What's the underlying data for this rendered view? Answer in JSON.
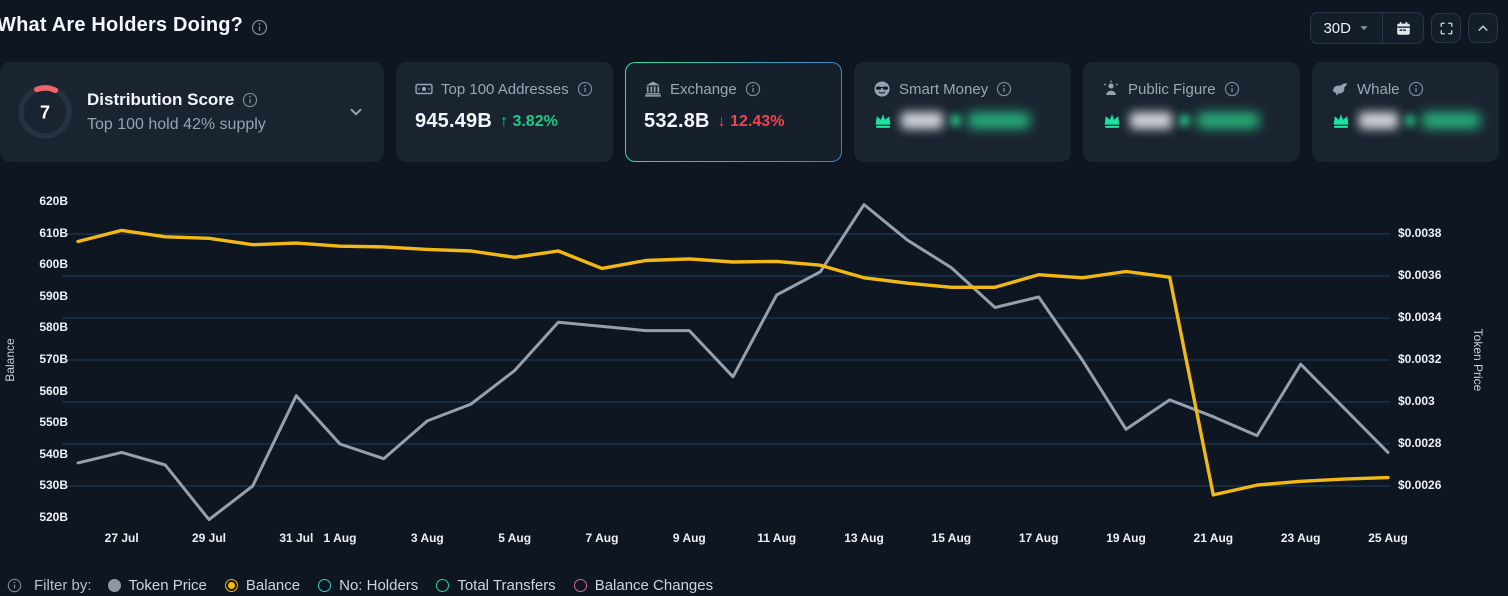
{
  "header": {
    "title": "What Are Holders Doing?",
    "timeframe": "30D"
  },
  "cards": {
    "distribution_score": {
      "score": "7",
      "title": "Distribution Score",
      "subtitle": "Top 100 hold 42% supply",
      "arc_color": "#f0646b"
    },
    "stats": [
      {
        "title": "Top 100 Addresses",
        "icon": "banknote-icon",
        "value": "945.49B",
        "change": "3.82%",
        "direction": "up",
        "selected": false,
        "masked": false
      },
      {
        "title": "Exchange",
        "icon": "bank-icon",
        "value": "532.8B",
        "change": "12.43%",
        "direction": "down",
        "selected": true,
        "masked": false
      },
      {
        "title": "Smart Money",
        "icon": "smart-money-icon",
        "masked": true
      },
      {
        "title": "Public Figure",
        "icon": "public-figure-icon",
        "masked": true
      },
      {
        "title": "Whale",
        "icon": "whale-icon",
        "masked": true
      }
    ]
  },
  "chart_data": {
    "type": "line",
    "grid": "horizontal",
    "days": [
      "26 Jul",
      "27 Jul",
      "28 Jul",
      "29 Jul",
      "30 Jul",
      "31 Jul",
      "1 Aug",
      "2 Aug",
      "3 Aug",
      "4 Aug",
      "5 Aug",
      "6 Aug",
      "7 Aug",
      "8 Aug",
      "9 Aug",
      "10 Aug",
      "11 Aug",
      "12 Aug",
      "13 Aug",
      "14 Aug",
      "15 Aug",
      "16 Aug",
      "17 Aug",
      "18 Aug",
      "19 Aug",
      "20 Aug",
      "21 Aug",
      "22 Aug",
      "23 Aug",
      "24 Aug",
      "25 Aug"
    ],
    "x_ticks": [
      {
        "label": "27 Jul",
        "day": 1
      },
      {
        "label": "29 Jul",
        "day": 3
      },
      {
        "label": "31 Jul",
        "day": 5
      },
      {
        "label": "1 Aug",
        "day": 6
      },
      {
        "label": "3 Aug",
        "day": 8
      },
      {
        "label": "5 Aug",
        "day": 10
      },
      {
        "label": "7 Aug",
        "day": 12
      },
      {
        "label": "9 Aug",
        "day": 14
      },
      {
        "label": "11 Aug",
        "day": 16
      },
      {
        "label": "13 Aug",
        "day": 18
      },
      {
        "label": "15 Aug",
        "day": 20
      },
      {
        "label": "17 Aug",
        "day": 22
      },
      {
        "label": "19 Aug",
        "day": 24
      },
      {
        "label": "21 Aug",
        "day": 26
      },
      {
        "label": "23 Aug",
        "day": 28
      },
      {
        "label": "25 Aug",
        "day": 30
      }
    ],
    "left_axis": {
      "label": "Balance",
      "max": 620,
      "min": 520,
      "ticks": [
        "620B",
        "610B",
        "600B",
        "590B",
        "580B",
        "570B",
        "560B",
        "550B",
        "540B",
        "530B",
        "520B"
      ]
    },
    "right_axis": {
      "label": "Token Price",
      "max": 0.0038,
      "min": 0.0026,
      "ticks": [
        "$0.0038",
        "$0.0036",
        "$0.0034",
        "$0.0032",
        "$0.003",
        "$0.0028",
        "$0.0026"
      ]
    },
    "series": [
      {
        "name": "Balance",
        "axis": "left",
        "color": "#f2b816",
        "values": [
          607.5,
          611,
          609,
          608.5,
          606.5,
          607,
          606,
          605.8,
          605,
          604.5,
          602.5,
          604.5,
          599,
          601.5,
          602,
          601,
          601.2,
          600,
          596,
          594.3,
          593,
          593,
          597,
          596,
          598,
          596.2,
          527.3,
          530.4,
          531.6,
          532.3,
          532.8
        ]
      },
      {
        "name": "Token Price",
        "axis": "right",
        "color": "#94a0ad",
        "values": [
          0.00271,
          0.00276,
          0.0027,
          0.00244,
          0.0026,
          0.00303,
          0.0028,
          0.00273,
          0.00291,
          0.00299,
          0.00315,
          0.00338,
          0.00336,
          0.00334,
          0.00334,
          0.00312,
          0.00351,
          0.00362,
          0.00394,
          0.00377,
          0.00364,
          0.00345,
          0.0035,
          0.0032,
          0.00287,
          0.00301,
          0.00293,
          0.00284,
          0.00318,
          0.00297,
          0.00276
        ]
      }
    ]
  },
  "filter": {
    "label": "Filter by:",
    "options": [
      {
        "label": "Token Price",
        "color": "#8b97a3",
        "style": "filled",
        "selected": false
      },
      {
        "label": "Balance",
        "color": "#f0b90b",
        "style": "radio",
        "selected": true
      },
      {
        "label": "No: Holders",
        "color": "#2fd6c3",
        "style": "ring",
        "selected": false
      },
      {
        "label": "Total Transfers",
        "color": "#27d99e",
        "style": "ring",
        "selected": false
      },
      {
        "label": "Balance Changes",
        "color": "#e05fa9",
        "style": "ring",
        "selected": false
      }
    ]
  },
  "colors": {
    "up": "#1ecb81",
    "down": "#ef4550",
    "grid": "#1d4260",
    "crown": "#19e3a1",
    "background": "#0e1621",
    "card": "#1a2330"
  }
}
